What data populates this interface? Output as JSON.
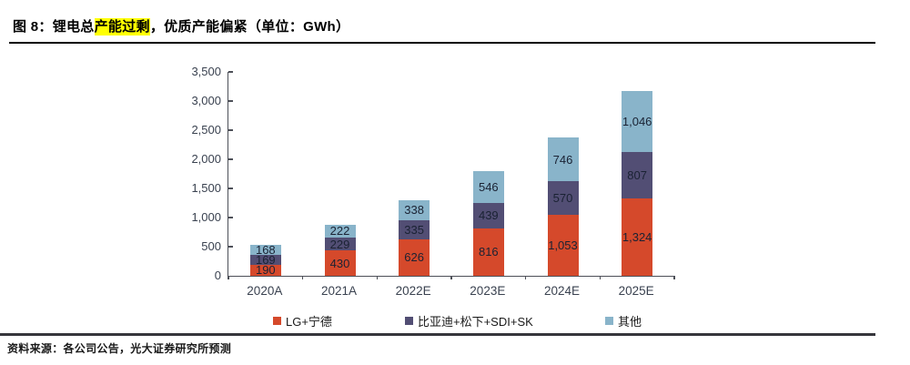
{
  "figure": {
    "title_prefix": "图 8：锂电总",
    "title_highlight": "产能过剩",
    "title_suffix": "，优质产能偏紧（单位：GWh）",
    "source": "资料来源：各公司公告，光大证券研究所预测"
  },
  "chart_data": {
    "type": "bar",
    "stacked": true,
    "unit": "GWh",
    "categories": [
      "2020A",
      "2021A",
      "2022E",
      "2023E",
      "2024E",
      "2025E"
    ],
    "series": [
      {
        "name": "LG+宁德",
        "color": "#d5492b",
        "values": [
          190,
          430,
          626,
          816,
          1053,
          1324
        ]
      },
      {
        "name": "比亚迪+松下+SDI+SK",
        "color": "#524e74",
        "values": [
          169,
          229,
          335,
          439,
          570,
          807
        ]
      },
      {
        "name": "其他",
        "color": "#89b4ca",
        "values": [
          168,
          222,
          338,
          546,
          746,
          1046
        ]
      }
    ],
    "totals": [
      527,
      881,
      1299,
      1801,
      2369,
      3177
    ],
    "ylim": [
      0,
      3500
    ],
    "ytick_step": 500,
    "ytick_labels": [
      "0",
      "500",
      "1,000",
      "1,500",
      "2,000",
      "2,500",
      "3,000",
      "3,500"
    ],
    "grid": false,
    "legend_position": "bottom",
    "value_labels": true
  }
}
